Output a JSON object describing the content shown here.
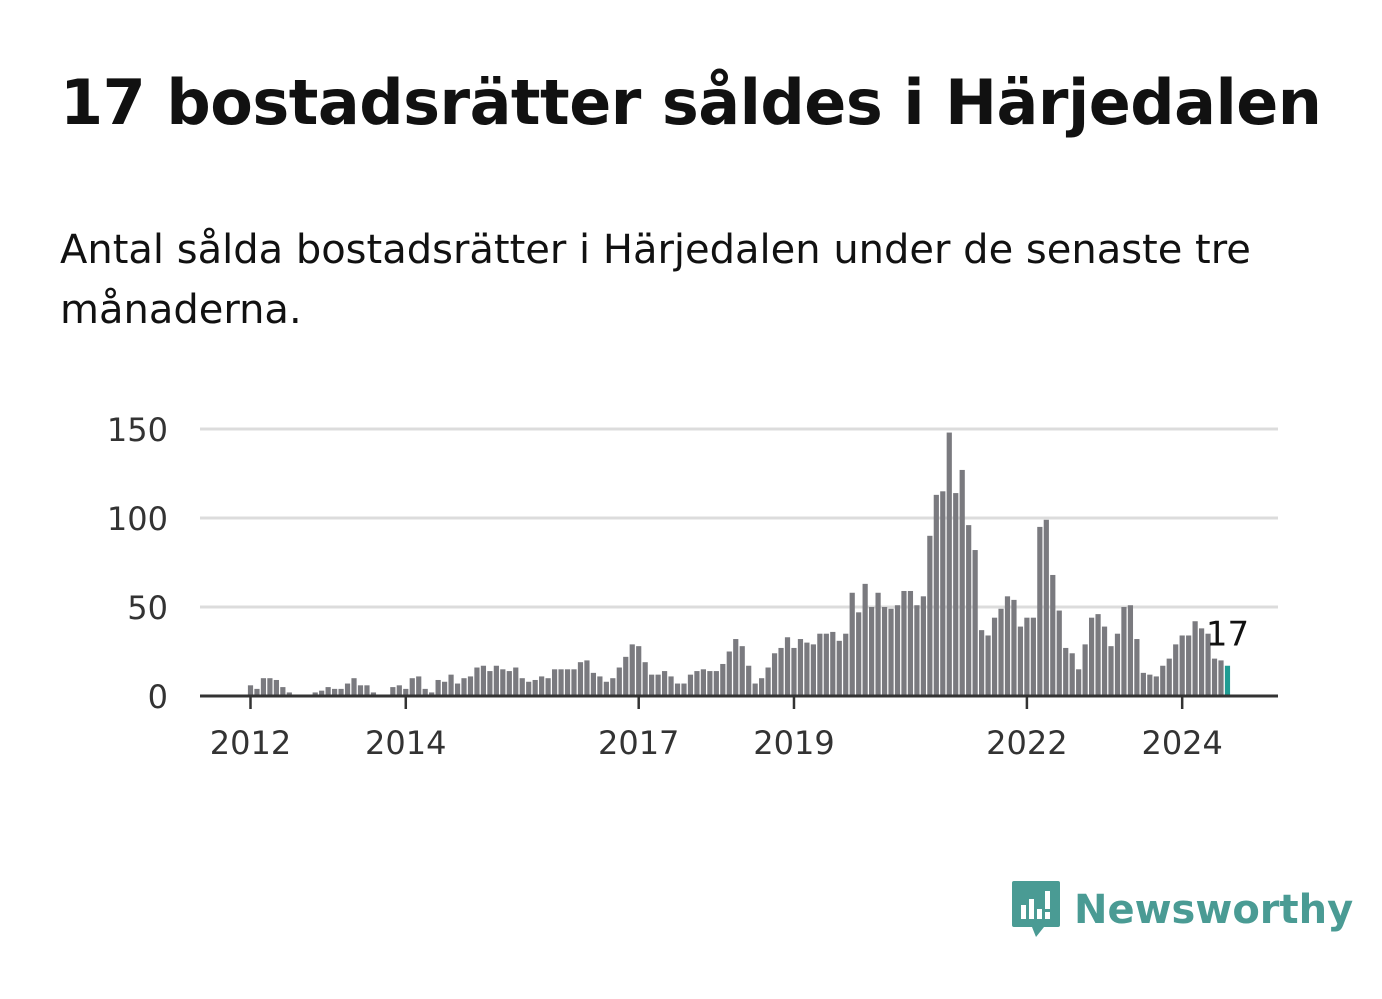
{
  "header": {
    "title": "17 bostadsrätter såldes i Härjedalen",
    "subtitle": "Antal sålda bostadsrätter i Härjedalen under de senaste tre månaderna."
  },
  "brand": {
    "name": "Newsworthy",
    "color": "#4a9b94",
    "icon": "chart-bubble-icon"
  },
  "chart_data": {
    "type": "bar",
    "x_start": "2012-01",
    "y_ticks": [
      0,
      50,
      100,
      150
    ],
    "ylim": [
      0,
      150
    ],
    "x_tick_labels": [
      "2012",
      "2014",
      "2017",
      "2019",
      "2022",
      "2024"
    ],
    "bar_color": "#7a7a7f",
    "highlight_color": "#1f9c93",
    "grid": true,
    "last_value_label": "17",
    "values": [
      6,
      4,
      10,
      10,
      9,
      5,
      2,
      0,
      0,
      0,
      2,
      3,
      5,
      4,
      4,
      7,
      10,
      6,
      6,
      2,
      0,
      0,
      5,
      6,
      4,
      10,
      11,
      4,
      2,
      9,
      8,
      12,
      7,
      10,
      11,
      16,
      17,
      14,
      17,
      15,
      14,
      16,
      10,
      8,
      9,
      11,
      10,
      15,
      15,
      15,
      15,
      19,
      20,
      13,
      11,
      8,
      10,
      16,
      22,
      29,
      28,
      19,
      12,
      12,
      14,
      11,
      7,
      7,
      12,
      14,
      15,
      14,
      14,
      18,
      25,
      32,
      28,
      17,
      7,
      10,
      16,
      24,
      27,
      33,
      27,
      32,
      30,
      29,
      35,
      35,
      36,
      31,
      35,
      58,
      47,
      63,
      50,
      58,
      50,
      49,
      51,
      59,
      59,
      51,
      56,
      90,
      113,
      115,
      148,
      114,
      127,
      96,
      82,
      37,
      34,
      44,
      49,
      56,
      54,
      39,
      44,
      44,
      95,
      99,
      68,
      48,
      27,
      24,
      15,
      29,
      44,
      46,
      39,
      28,
      35,
      50,
      51,
      32,
      13,
      12,
      11,
      17,
      21,
      29,
      34,
      34,
      42,
      38,
      35,
      21,
      20,
      17
    ]
  }
}
